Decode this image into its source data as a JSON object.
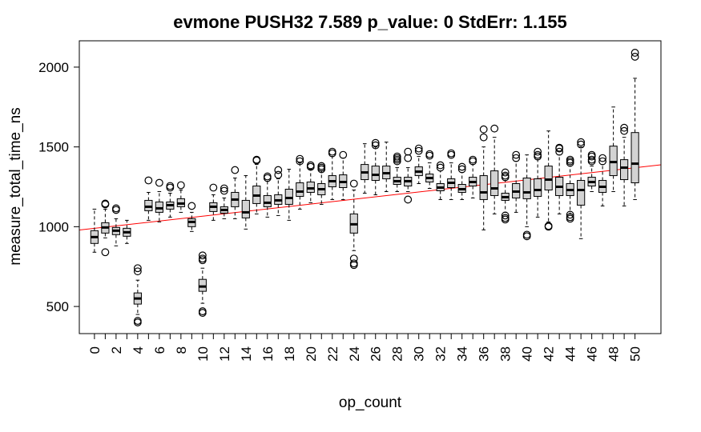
{
  "chart_data": {
    "type": "boxplot",
    "title": "evmone PUSH32 7.589 p_value: 0 StdErr: 1.155",
    "xlabel": "op_count",
    "ylabel": "measure_total_time_ns",
    "ylim": [
      330,
      2165
    ],
    "y_ticks": [
      500,
      1000,
      1500,
      2000
    ],
    "x_tick_labels": [
      "0",
      "2",
      "4",
      "6",
      "8",
      "10",
      "12",
      "14",
      "16",
      "18",
      "20",
      "22",
      "24",
      "26",
      "28",
      "30",
      "32",
      "34",
      "36",
      "38",
      "40",
      "42",
      "44",
      "46",
      "48",
      "50"
    ],
    "colors": {
      "box_fill": "#d3d3d3",
      "regression_line": "#ff0000",
      "outline": "#000000"
    },
    "regression": {
      "intercept": 990,
      "slope": 7.589
    },
    "boxes": [
      {
        "x": 0,
        "lo": 840,
        "q1": 895,
        "med": 935,
        "q3": 975,
        "hi": 1110,
        "out": []
      },
      {
        "x": 1,
        "lo": 930,
        "q1": 960,
        "med": 995,
        "q3": 1025,
        "hi": 1110,
        "out": [
          1145,
          1140,
          840
        ]
      },
      {
        "x": 2,
        "lo": 880,
        "q1": 950,
        "med": 975,
        "q3": 995,
        "hi": 1050,
        "out": [
          1115,
          1105
        ]
      },
      {
        "x": 3,
        "lo": 895,
        "q1": 940,
        "med": 965,
        "q3": 990,
        "hi": 1040,
        "out": []
      },
      {
        "x": 4,
        "lo": 450,
        "q1": 515,
        "med": 550,
        "q3": 585,
        "hi": 665,
        "out": [
          740,
          720,
          410,
          400
        ]
      },
      {
        "x": 5,
        "lo": 1040,
        "q1": 1100,
        "med": 1125,
        "q3": 1165,
        "hi": 1215,
        "out": [
          1290
        ]
      },
      {
        "x": 6,
        "lo": 1030,
        "q1": 1090,
        "med": 1115,
        "q3": 1155,
        "hi": 1220,
        "out": [
          1275
        ]
      },
      {
        "x": 7,
        "lo": 1060,
        "q1": 1110,
        "med": 1135,
        "q3": 1155,
        "hi": 1210,
        "out": [
          1255,
          1245
        ]
      },
      {
        "x": 8,
        "lo": 1090,
        "q1": 1125,
        "med": 1145,
        "q3": 1175,
        "hi": 1230,
        "out": [
          1260
        ]
      },
      {
        "x": 9,
        "lo": 970,
        "q1": 1000,
        "med": 1030,
        "q3": 1050,
        "hi": 1090,
        "out": [
          1130
        ]
      },
      {
        "x": 10,
        "lo": 520,
        "q1": 595,
        "med": 625,
        "q3": 670,
        "hi": 740,
        "out": [
          820,
          800,
          790,
          470,
          460
        ]
      },
      {
        "x": 11,
        "lo": 1040,
        "q1": 1095,
        "med": 1125,
        "q3": 1150,
        "hi": 1200,
        "out": [
          1245
        ]
      },
      {
        "x": 12,
        "lo": 1050,
        "q1": 1085,
        "med": 1105,
        "q3": 1125,
        "hi": 1180,
        "out": [
          1240,
          1225
        ]
      },
      {
        "x": 13,
        "lo": 1050,
        "q1": 1125,
        "med": 1170,
        "q3": 1215,
        "hi": 1305,
        "out": [
          1355
        ]
      },
      {
        "x": 14,
        "lo": 985,
        "q1": 1055,
        "med": 1090,
        "q3": 1165,
        "hi": 1320,
        "out": []
      },
      {
        "x": 15,
        "lo": 1080,
        "q1": 1145,
        "med": 1195,
        "q3": 1255,
        "hi": 1390,
        "out": [
          1420,
          1415
        ]
      },
      {
        "x": 16,
        "lo": 1060,
        "q1": 1125,
        "med": 1150,
        "q3": 1195,
        "hi": 1285,
        "out": [
          1315,
          1305
        ]
      },
      {
        "x": 17,
        "lo": 1070,
        "q1": 1140,
        "med": 1165,
        "q3": 1200,
        "hi": 1300,
        "out": [
          1355,
          1325
        ]
      },
      {
        "x": 18,
        "lo": 1040,
        "q1": 1140,
        "med": 1180,
        "q3": 1235,
        "hi": 1360,
        "out": []
      },
      {
        "x": 19,
        "lo": 1110,
        "q1": 1190,
        "med": 1220,
        "q3": 1275,
        "hi": 1400,
        "out": [
          1425,
          1410
        ]
      },
      {
        "x": 20,
        "lo": 1150,
        "q1": 1215,
        "med": 1240,
        "q3": 1280,
        "hi": 1360,
        "out": [
          1385,
          1375
        ]
      },
      {
        "x": 21,
        "lo": 1140,
        "q1": 1200,
        "med": 1235,
        "q3": 1270,
        "hi": 1350,
        "out": [
          1380,
          1370,
          1360
        ]
      },
      {
        "x": 22,
        "lo": 1170,
        "q1": 1250,
        "med": 1285,
        "q3": 1320,
        "hi": 1440,
        "out": [
          1470,
          1460
        ]
      },
      {
        "x": 23,
        "lo": 1170,
        "q1": 1245,
        "med": 1280,
        "q3": 1325,
        "hi": 1430,
        "out": [
          1450
        ]
      },
      {
        "x": 24,
        "lo": 850,
        "q1": 960,
        "med": 1015,
        "q3": 1080,
        "hi": 1230,
        "out": [
          1270,
          800,
          770,
          760
        ]
      },
      {
        "x": 25,
        "lo": 1210,
        "q1": 1295,
        "med": 1340,
        "q3": 1390,
        "hi": 1520,
        "out": []
      },
      {
        "x": 26,
        "lo": 1200,
        "q1": 1290,
        "med": 1325,
        "q3": 1380,
        "hi": 1500,
        "out": [
          1525,
          1510
        ]
      },
      {
        "x": 27,
        "lo": 1220,
        "q1": 1300,
        "med": 1335,
        "q3": 1380,
        "hi": 1530,
        "out": []
      },
      {
        "x": 28,
        "lo": 1220,
        "q1": 1265,
        "med": 1285,
        "q3": 1310,
        "hi": 1370,
        "out": [
          1440,
          1430,
          1420,
          1410
        ]
      },
      {
        "x": 29,
        "lo": 1220,
        "q1": 1255,
        "med": 1285,
        "q3": 1310,
        "hi": 1370,
        "out": [
          1470,
          1430,
          1170
        ]
      },
      {
        "x": 30,
        "lo": 1270,
        "q1": 1320,
        "med": 1345,
        "q3": 1375,
        "hi": 1440,
        "out": [
          1490,
          1475
        ]
      },
      {
        "x": 31,
        "lo": 1240,
        "q1": 1280,
        "med": 1305,
        "q3": 1330,
        "hi": 1400,
        "out": [
          1455,
          1445
        ]
      },
      {
        "x": 32,
        "lo": 1170,
        "q1": 1225,
        "med": 1245,
        "q3": 1270,
        "hi": 1350,
        "out": [
          1385,
          1370
        ]
      },
      {
        "x": 33,
        "lo": 1170,
        "q1": 1245,
        "med": 1275,
        "q3": 1300,
        "hi": 1400,
        "out": [
          1460,
          1450
        ]
      },
      {
        "x": 34,
        "lo": 1170,
        "q1": 1215,
        "med": 1235,
        "q3": 1265,
        "hi": 1340,
        "out": [
          1375,
          1360
        ]
      },
      {
        "x": 35,
        "lo": 1180,
        "q1": 1255,
        "med": 1280,
        "q3": 1310,
        "hi": 1390,
        "out": [
          1420,
          1410
        ]
      },
      {
        "x": 36,
        "lo": 980,
        "q1": 1170,
        "med": 1215,
        "q3": 1320,
        "hi": 1500,
        "out": [
          1610,
          1560
        ]
      },
      {
        "x": 37,
        "lo": 1080,
        "q1": 1195,
        "med": 1240,
        "q3": 1350,
        "hi": 1560,
        "out": [
          1615
        ]
      },
      {
        "x": 38,
        "lo": 1090,
        "q1": 1165,
        "med": 1185,
        "q3": 1210,
        "hi": 1290,
        "out": [
          1340,
          1320,
          1310,
          1070,
          1055,
          1045
        ]
      },
      {
        "x": 39,
        "lo": 1090,
        "q1": 1180,
        "med": 1220,
        "q3": 1270,
        "hi": 1410,
        "out": [
          1450,
          1430
        ]
      },
      {
        "x": 40,
        "lo": 1000,
        "q1": 1175,
        "med": 1215,
        "q3": 1305,
        "hi": 1450,
        "out": [
          950,
          940
        ]
      },
      {
        "x": 41,
        "lo": 1060,
        "q1": 1190,
        "med": 1230,
        "q3": 1300,
        "hi": 1420,
        "out": [
          1470,
          1450,
          1440
        ]
      },
      {
        "x": 42,
        "lo": 1030,
        "q1": 1230,
        "med": 1295,
        "q3": 1380,
        "hi": 1600,
        "out": [
          1005,
          1000
        ]
      },
      {
        "x": 43,
        "lo": 1080,
        "q1": 1195,
        "med": 1250,
        "q3": 1310,
        "hi": 1450,
        "out": [
          1495,
          1490,
          1470
        ]
      },
      {
        "x": 44,
        "lo": 1080,
        "q1": 1195,
        "med": 1230,
        "q3": 1270,
        "hi": 1380,
        "out": [
          1420,
          1410,
          1400,
          1075,
          1060,
          1050
        ]
      },
      {
        "x": 45,
        "lo": 925,
        "q1": 1135,
        "med": 1230,
        "q3": 1290,
        "hi": 1500,
        "out": [
          1530,
          1515
        ]
      },
      {
        "x": 46,
        "lo": 1220,
        "q1": 1255,
        "med": 1280,
        "q3": 1310,
        "hi": 1380,
        "out": [
          1450,
          1440,
          1420,
          1410
        ]
      },
      {
        "x": 47,
        "lo": 1130,
        "q1": 1215,
        "med": 1250,
        "q3": 1290,
        "hi": 1390,
        "out": [
          1430,
          1410
        ]
      },
      {
        "x": 48,
        "lo": 1220,
        "q1": 1320,
        "med": 1405,
        "q3": 1505,
        "hi": 1750,
        "out": []
      },
      {
        "x": 49,
        "lo": 1130,
        "q1": 1295,
        "med": 1370,
        "q3": 1420,
        "hi": 1560,
        "out": [
          1620,
          1600
        ]
      },
      {
        "x": 50,
        "lo": 1170,
        "q1": 1275,
        "med": 1395,
        "q3": 1590,
        "hi": 1930,
        "out": [
          2090,
          2065
        ]
      }
    ]
  }
}
